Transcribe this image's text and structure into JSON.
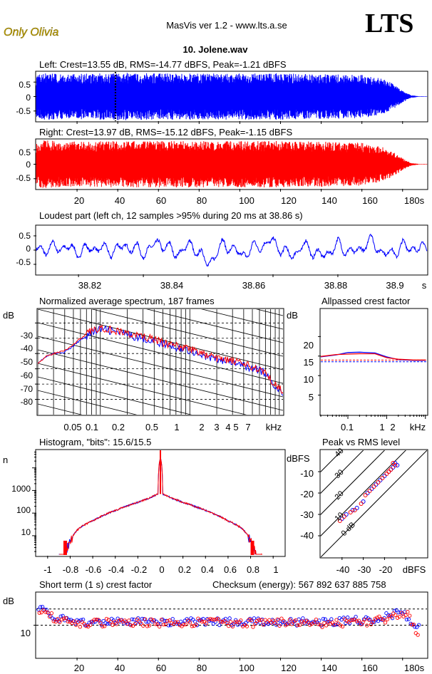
{
  "header": {
    "brand": "Only Olivia",
    "app": "MasVis ver 1.2 - www.lts.a.se",
    "logo": "LTS",
    "track": "10. Jolene.wav"
  },
  "colors": {
    "left": "#0000ff",
    "right": "#ff0000",
    "brand": "#c8a800"
  },
  "waveform_left": {
    "title": "Left: Crest=13.55 dB, RMS=-14.77 dBFS, Peak=-1.21 dBFS",
    "yticks": [
      "0.5",
      "0",
      "-0.5"
    ],
    "marker_s": 38.86
  },
  "waveform_right": {
    "title": "Right: Crest=13.97 dB, RMS=-15.12 dBFS, Peak=-1.15 dBFS",
    "yticks": [
      "0.5",
      "0",
      "-0.5"
    ],
    "xticks": [
      "20",
      "40",
      "60",
      "80",
      "100",
      "120",
      "140",
      "160",
      "180s"
    ]
  },
  "loudest": {
    "title": "Loudest part (left  ch, 12 samples >95% during 20 ms at 38.86 s)",
    "yticks": [
      "0.5",
      "0",
      "-0.5"
    ],
    "xticks": [
      "38.82",
      "38.84",
      "38.86",
      "38.88",
      "38.9",
      "s"
    ]
  },
  "spectrum": {
    "title": "Normalized average spectrum, 187 frames",
    "unit": "dB",
    "yticks": [
      "-30",
      "-40",
      "-50",
      "-60",
      "-70",
      "-80"
    ],
    "xticks": [
      "0.05",
      "0.1",
      "0.2",
      "0.5",
      "1",
      "2",
      "3",
      "4",
      "5",
      "7",
      "kHz"
    ]
  },
  "crest_allpass": {
    "title": "Allpassed crest factor",
    "unit": "dB",
    "yticks": [
      "20",
      "15",
      "10",
      "5"
    ],
    "xticks": [
      "0.1",
      "1",
      "2",
      "kHz"
    ]
  },
  "histogram": {
    "title": "Histogram, \"bits\": 15.6/15.5",
    "unit": "n",
    "yticks": [
      "1000",
      "100",
      "10"
    ],
    "xticks": [
      "-1",
      "-0.8",
      "-0.6",
      "-0.4",
      "-0.2",
      "0",
      "0.2",
      "0.4",
      "0.6",
      "0.8",
      "1"
    ]
  },
  "peak_rms": {
    "title": "Peak vs RMS level",
    "unit": "dBFS",
    "yticks": [
      "-10",
      "-20",
      "-30",
      "-40"
    ],
    "xticks": [
      "-40",
      "-30",
      "-20",
      "dBFS"
    ],
    "diag_labels": [
      "40",
      "30",
      "20",
      "10",
      "0 dB"
    ]
  },
  "short_term": {
    "title": "Short term (1 s) crest factor",
    "checksum": "Checksum (energy):   567 892 637 885 758",
    "unit": "dB",
    "yticks": [
      "10"
    ],
    "xticks": [
      "20",
      "40",
      "60",
      "80",
      "100",
      "120",
      "140",
      "160",
      "180s"
    ]
  },
  "chart_data": [
    {
      "type": "area",
      "title": "Left: Crest=13.55 dB, RMS=-14.77 dBFS, Peak=-1.21 dBFS",
      "xlim": [
        0,
        192
      ],
      "ylim": [
        -0.85,
        0.85
      ],
      "x": [
        0,
        3,
        10,
        20,
        40,
        60,
        80,
        100,
        120,
        140,
        160,
        170,
        176,
        180,
        184,
        188
      ],
      "envelope": [
        0.7,
        0.82,
        0.78,
        0.78,
        0.82,
        0.8,
        0.8,
        0.8,
        0.8,
        0.78,
        0.75,
        0.62,
        0.42,
        0.2,
        0.05,
        0.01
      ],
      "marker_s": 38.86
    },
    {
      "type": "area",
      "title": "Right: Crest=13.97 dB, RMS=-15.12 dBFS, Peak=-1.15 dBFS",
      "xlim": [
        0,
        192
      ],
      "ylim": [
        -0.85,
        0.85
      ],
      "x": [
        0,
        3,
        10,
        20,
        40,
        60,
        80,
        100,
        120,
        140,
        160,
        170,
        176,
        180,
        184,
        188
      ],
      "envelope": [
        0.72,
        0.84,
        0.8,
        0.78,
        0.8,
        0.8,
        0.8,
        0.8,
        0.8,
        0.78,
        0.74,
        0.6,
        0.4,
        0.2,
        0.05,
        0.01
      ]
    },
    {
      "type": "line",
      "title": "Loudest part (left  ch, 12 samples >95% during 20 ms at 38.86 s)",
      "xlim": [
        38.807,
        38.9275
      ],
      "ylim": [
        -0.85,
        0.85
      ],
      "x": [
        38.81,
        38.815,
        38.82,
        38.825,
        38.83,
        38.835,
        38.84,
        38.845,
        38.85,
        38.855,
        38.86,
        38.865,
        38.87,
        38.875,
        38.88,
        38.885,
        38.89,
        38.895,
        38.9,
        38.905,
        38.91,
        38.915,
        38.92,
        38.925
      ],
      "y": [
        0.05,
        0.2,
        -0.1,
        0.15,
        -0.05,
        0.25,
        -0.15,
        0.45,
        -0.2,
        0.3,
        -0.8,
        0.4,
        -0.3,
        0.2,
        0.5,
        -0.35,
        0.25,
        -0.4,
        0.3,
        -0.2,
        0.55,
        -0.3,
        0.2,
        0.1
      ]
    },
    {
      "type": "line",
      "title": "Normalized average spectrum, 187 frames",
      "xscale": "log",
      "xlim": [
        0.02,
        11
      ],
      "ylim": [
        -90,
        -21
      ],
      "x": [
        0.02,
        0.025,
        0.03,
        0.04,
        0.05,
        0.06,
        0.08,
        0.1,
        0.15,
        0.2,
        0.3,
        0.5,
        0.7,
        1,
        1.5,
        2,
        3,
        4,
        5,
        6,
        7,
        8,
        10,
        11
      ],
      "series": [
        {
          "color": "left",
          "y": [
            -56,
            -52,
            -50,
            -49,
            -45,
            -41,
            -36,
            -34,
            -36,
            -38,
            -40,
            -44,
            -46,
            -48,
            -52,
            -54,
            -56,
            -58,
            -60,
            -61,
            -63,
            -68,
            -74,
            -78
          ]
        },
        {
          "color": "right",
          "y": [
            -56,
            -52,
            -50,
            -48,
            -44,
            -40,
            -35,
            -33,
            -35,
            -37,
            -39,
            -43,
            -45,
            -47,
            -51,
            -53,
            -55,
            -57,
            -59,
            -60,
            -62,
            -67,
            -72,
            -77
          ]
        }
      ]
    },
    {
      "type": "line",
      "title": "Allpassed crest factor",
      "xscale": "log",
      "xlim": [
        0.02,
        11
      ],
      "ylim": [
        0,
        27
      ],
      "x": [
        0.02,
        0.05,
        0.1,
        0.2,
        0.5,
        1,
        2,
        5,
        10
      ],
      "series": [
        {
          "color": "left",
          "y": [
            14.8,
            15.3,
            15.9,
            16.0,
            15.8,
            14.8,
            14.1,
            13.9,
            13.9
          ]
        },
        {
          "color": "right",
          "y": [
            14.9,
            15.4,
            15.5,
            15.6,
            15.6,
            14.6,
            14.2,
            14.0,
            14.0
          ]
        }
      ],
      "reference_lines": [
        13.55,
        13.97
      ]
    },
    {
      "type": "bar",
      "title": "Histogram, \"bits\": 15.6/15.5",
      "yscale": "log",
      "xlim": [
        -1.1,
        1.1
      ],
      "ylim": [
        1.3,
        60000
      ],
      "x": [
        -0.85,
        -0.8,
        -0.7,
        -0.6,
        -0.5,
        -0.4,
        -0.3,
        -0.2,
        -0.1,
        -0.02,
        0,
        0.02,
        0.1,
        0.2,
        0.3,
        0.4,
        0.5,
        0.6,
        0.7,
        0.8,
        0.85
      ],
      "y": [
        1,
        5,
        25,
        45,
        80,
        130,
        200,
        300,
        450,
        700,
        30000,
        700,
        450,
        300,
        200,
        130,
        80,
        45,
        25,
        5,
        1
      ]
    },
    {
      "type": "scatter",
      "title": "Peak vs RMS level",
      "xlim": [
        -50,
        0
      ],
      "ylim": [
        -50,
        0
      ],
      "series": [
        {
          "color": "left",
          "points": [
            [
              -24,
              -16
            ],
            [
              -22,
              -14
            ],
            [
              -20,
              -12
            ],
            [
              -18,
              -10
            ],
            [
              -16,
              -8
            ],
            [
              -14,
              -7
            ],
            [
              -17,
              -9
            ],
            [
              -26,
              -18
            ],
            [
              -28,
              -20
            ],
            [
              -30,
              -24
            ],
            [
              -35,
              -28
            ],
            [
              -40,
              -32
            ],
            [
              -38,
              -30
            ],
            [
              -33,
              -27
            ],
            [
              -15,
              -6
            ]
          ]
        },
        {
          "color": "right",
          "points": [
            [
              -25,
              -17
            ],
            [
              -23,
              -15
            ],
            [
              -21,
              -13
            ],
            [
              -19,
              -11
            ],
            [
              -17,
              -9
            ],
            [
              -15,
              -7
            ],
            [
              -18,
              -10
            ],
            [
              -27,
              -19
            ],
            [
              -29,
              -21
            ],
            [
              -31,
              -25
            ],
            [
              -36,
              -29
            ],
            [
              -41,
              -33
            ],
            [
              -39,
              -31
            ],
            [
              -34,
              -28
            ],
            [
              -16,
              -6
            ]
          ]
        }
      ]
    },
    {
      "type": "scatter",
      "title": "Short term (1 s) crest factor",
      "xlim": [
        0,
        192
      ],
      "ylim": [
        0,
        20
      ],
      "reference_lines": [
        10,
        15
      ],
      "series": [
        {
          "color": "left",
          "points": [
            [
              2,
              16
            ],
            [
              5,
              14
            ],
            [
              10,
              12
            ],
            [
              20,
              11
            ],
            [
              40,
              11
            ],
            [
              60,
              11
            ],
            [
              80,
              11
            ],
            [
              100,
              11
            ],
            [
              120,
              11
            ],
            [
              140,
              11
            ],
            [
              160,
              11.5
            ],
            [
              170,
              12.5
            ],
            [
              180,
              14
            ],
            [
              186,
              10
            ]
          ]
        },
        {
          "color": "right",
          "points": [
            [
              3,
              15
            ],
            [
              6,
              13
            ],
            [
              12,
              11.5
            ],
            [
              22,
              10.5
            ],
            [
              42,
              11
            ],
            [
              62,
              10.5
            ],
            [
              82,
              11
            ],
            [
              102,
              10.5
            ],
            [
              122,
              11
            ],
            [
              142,
              10.5
            ],
            [
              162,
              11
            ],
            [
              172,
              12
            ],
            [
              182,
              13.5
            ],
            [
              187,
              8
            ]
          ]
        }
      ]
    }
  ]
}
